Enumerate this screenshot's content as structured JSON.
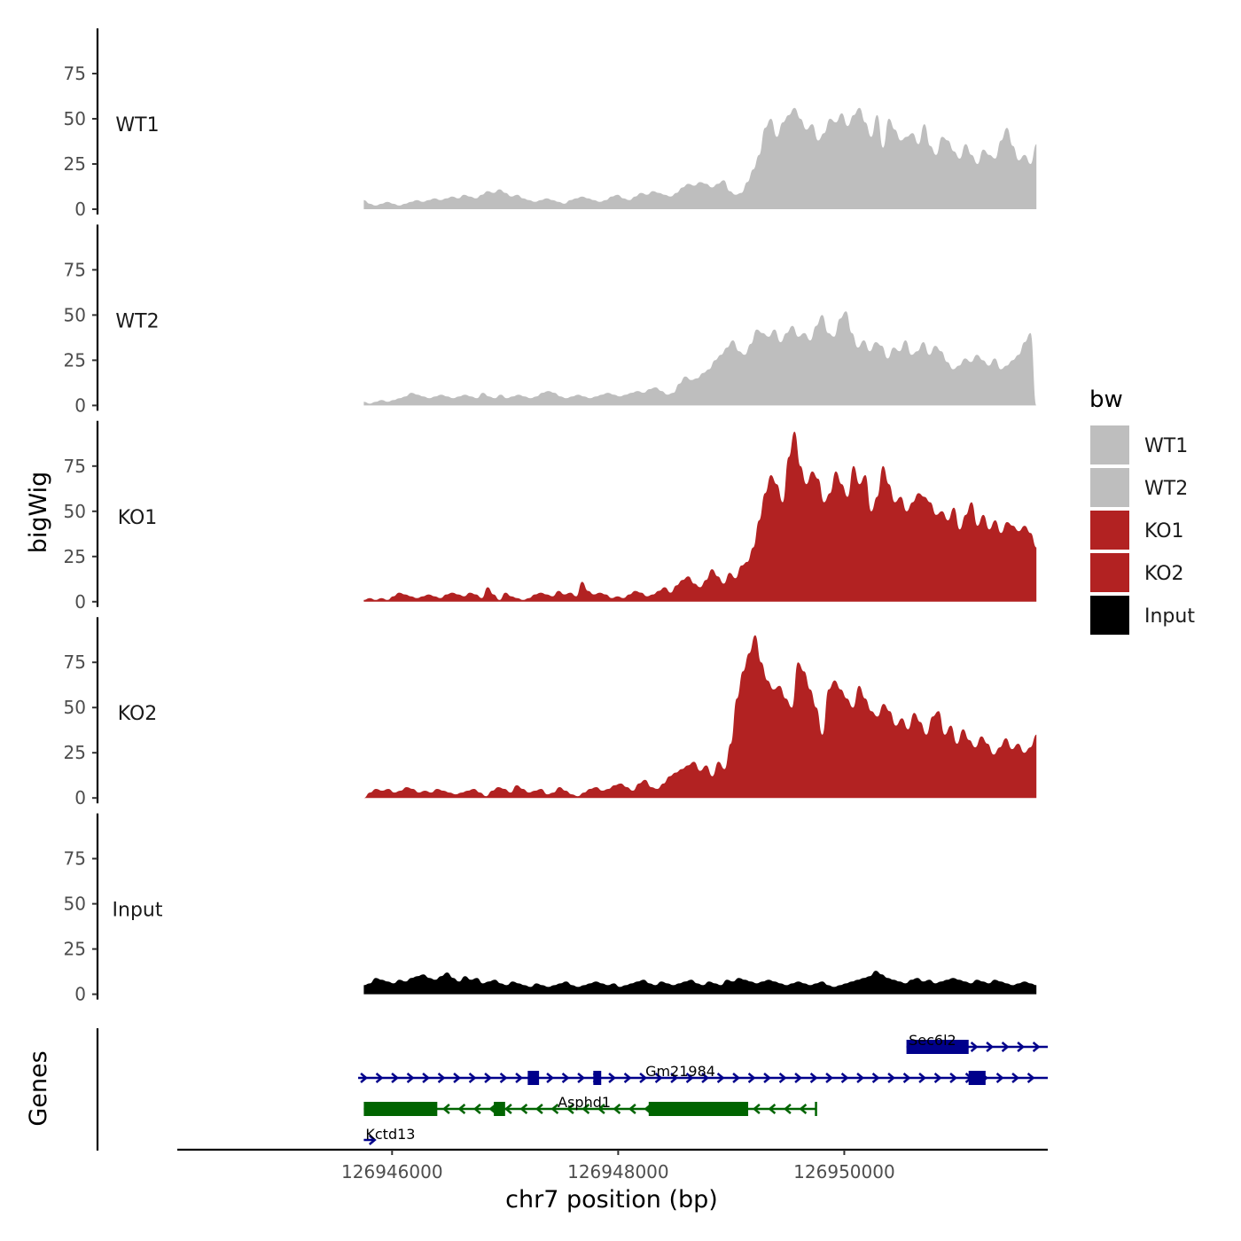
{
  "chart_data": {
    "type": "area",
    "title": "",
    "chromosome": "chr7",
    "xlabel": "chr7 position (bp)",
    "ylabel": "bigWig",
    "genes_ylabel": "Genes",
    "xlim": [
      126944100,
      126951800
    ],
    "x_ticks": [
      126946000,
      126948000,
      126950000
    ],
    "x_tick_labels": [
      "126946000",
      "126948000",
      "126950000"
    ],
    "ylim": [
      0,
      100
    ],
    "y_ticks": [
      0,
      25,
      50,
      75
    ],
    "y_tick_labels": [
      "0",
      "25",
      "50",
      "75"
    ],
    "data_range": [
      126945750,
      126951700
    ],
    "legend": {
      "title": "bw",
      "position": "right",
      "entries": [
        {
          "label": "WT1",
          "color": "#bebebe"
        },
        {
          "label": "WT2",
          "color": "#bebebe"
        },
        {
          "label": "KO1",
          "color": "#b22222"
        },
        {
          "label": "KO2",
          "color": "#b22222"
        },
        {
          "label": "Input",
          "color": "#000000"
        }
      ]
    },
    "series": [
      {
        "name": "WT1",
        "color": "#bebebe",
        "values": [
          5,
          3,
          2,
          3,
          4,
          3,
          2,
          3,
          4,
          5,
          4,
          5,
          6,
          5,
          6,
          7,
          6,
          8,
          7,
          6,
          8,
          10,
          9,
          11,
          9,
          7,
          8,
          6,
          5,
          4,
          5,
          6,
          5,
          4,
          3,
          5,
          6,
          7,
          6,
          5,
          4,
          5,
          7,
          8,
          6,
          5,
          7,
          9,
          8,
          10,
          9,
          8,
          7,
          9,
          12,
          14,
          13,
          15,
          14,
          12,
          14,
          16,
          10,
          8,
          9,
          15,
          22,
          30,
          45,
          50,
          40,
          48,
          52,
          56,
          50,
          44,
          47,
          38,
          42,
          50,
          48,
          53,
          46,
          52,
          56,
          48,
          40,
          52,
          34,
          50,
          44,
          38,
          40,
          42,
          36,
          47,
          35,
          30,
          40,
          38,
          32,
          28,
          36,
          30,
          25,
          33,
          30,
          28,
          38,
          45,
          35,
          27,
          30,
          25,
          36
        ]
      },
      {
        "name": "WT2",
        "color": "#bebebe",
        "values": [
          2,
          1,
          2,
          3,
          2,
          3,
          4,
          5,
          7,
          6,
          5,
          4,
          5,
          6,
          5,
          4,
          5,
          6,
          5,
          4,
          7,
          5,
          4,
          6,
          4,
          5,
          6,
          5,
          4,
          5,
          7,
          8,
          7,
          5,
          4,
          5,
          6,
          5,
          4,
          5,
          6,
          7,
          6,
          5,
          6,
          7,
          8,
          7,
          9,
          10,
          8,
          6,
          7,
          12,
          16,
          14,
          15,
          18,
          20,
          25,
          28,
          32,
          36,
          30,
          28,
          34,
          42,
          40,
          38,
          42,
          35,
          40,
          44,
          38,
          40,
          36,
          44,
          50,
          40,
          38,
          48,
          52,
          40,
          32,
          36,
          30,
          35,
          33,
          26,
          32,
          30,
          36,
          28,
          30,
          35,
          28,
          33,
          30,
          24,
          20,
          22,
          26,
          24,
          28,
          25,
          22,
          26,
          20,
          22,
          25,
          28,
          35,
          40,
          0
        ]
      },
      {
        "name": "KO1",
        "color": "#b22222",
        "values": [
          1,
          2,
          1,
          2,
          1,
          3,
          5,
          4,
          3,
          2,
          3,
          4,
          3,
          2,
          4,
          5,
          4,
          3,
          5,
          4,
          2,
          8,
          4,
          1,
          5,
          3,
          2,
          1,
          2,
          4,
          5,
          4,
          3,
          6,
          4,
          5,
          3,
          11,
          6,
          4,
          5,
          4,
          2,
          3,
          2,
          4,
          6,
          5,
          3,
          4,
          6,
          8,
          5,
          9,
          12,
          14,
          10,
          8,
          12,
          18,
          14,
          10,
          16,
          13,
          20,
          22,
          30,
          45,
          60,
          70,
          65,
          55,
          80,
          94,
          75,
          65,
          72,
          68,
          55,
          60,
          72,
          65,
          58,
          75,
          65,
          70,
          50,
          58,
          75,
          65,
          55,
          58,
          50,
          55,
          60,
          58,
          55,
          48,
          50,
          45,
          52,
          40,
          48,
          55,
          42,
          48,
          40,
          45,
          38,
          44,
          42,
          39,
          42,
          38,
          30
        ]
      },
      {
        "name": "KO2",
        "color": "#b22222",
        "values": [
          0,
          3,
          5,
          4,
          5,
          3,
          4,
          6,
          5,
          3,
          4,
          3,
          5,
          4,
          3,
          2,
          3,
          4,
          5,
          3,
          1,
          4,
          6,
          5,
          3,
          7,
          5,
          3,
          4,
          5,
          2,
          3,
          6,
          4,
          2,
          1,
          3,
          5,
          6,
          4,
          5,
          7,
          8,
          6,
          4,
          8,
          10,
          6,
          5,
          8,
          12,
          14,
          16,
          18,
          20,
          15,
          18,
          12,
          20,
          16,
          30,
          55,
          70,
          80,
          90,
          75,
          65,
          60,
          62,
          55,
          50,
          75,
          70,
          60,
          50,
          35,
          60,
          65,
          60,
          55,
          50,
          62,
          55,
          48,
          45,
          52,
          48,
          40,
          44,
          38,
          47,
          42,
          35,
          45,
          48,
          35,
          40,
          30,
          38,
          32,
          28,
          34,
          30,
          24,
          28,
          33,
          27,
          30,
          25,
          28,
          35
        ]
      },
      {
        "name": "Input",
        "color": "#000000",
        "values": [
          5,
          6,
          9,
          8,
          7,
          6,
          8,
          7,
          9,
          10,
          11,
          9,
          8,
          10,
          12,
          9,
          7,
          10,
          8,
          9,
          6,
          7,
          8,
          6,
          5,
          7,
          6,
          5,
          4,
          6,
          5,
          4,
          5,
          6,
          7,
          5,
          4,
          5,
          6,
          7,
          6,
          5,
          6,
          4,
          5,
          6,
          7,
          8,
          6,
          5,
          7,
          6,
          5,
          6,
          7,
          8,
          6,
          5,
          7,
          6,
          5,
          8,
          7,
          9,
          8,
          7,
          6,
          7,
          8,
          7,
          6,
          5,
          6,
          7,
          6,
          5,
          6,
          7,
          5,
          4,
          5,
          6,
          7,
          8,
          9,
          10,
          13,
          11,
          9,
          8,
          7,
          6,
          8,
          9,
          7,
          8,
          6,
          7,
          8,
          9,
          8,
          7,
          6,
          8,
          7,
          6,
          8,
          7,
          6,
          5,
          6,
          7,
          6,
          5
        ]
      }
    ],
    "genes": [
      {
        "name": "Sec6l2",
        "row": 1,
        "strand": "+",
        "start": 126950550,
        "end": 126951800,
        "exons": [
          [
            126950550,
            126951100
          ]
        ],
        "color": "#00008b"
      },
      {
        "name": "Gm21984",
        "row": 2,
        "strand": "+",
        "start": 126945700,
        "end": 126951800,
        "exons": [
          [
            126947200,
            126947300
          ],
          [
            126947780,
            126947850
          ],
          [
            126951100,
            126951250
          ]
        ],
        "color": "#00008b"
      },
      {
        "name": "Asphd1",
        "row": 3,
        "strand": "-",
        "start": 126945750,
        "end": 126949750,
        "exons": [
          [
            126945750,
            126946400
          ],
          [
            126946900,
            126947000
          ],
          [
            126948270,
            126949150
          ]
        ],
        "color": "#006400"
      },
      {
        "name": "Kctd13",
        "row": 4,
        "strand": "+",
        "start": 126945750,
        "end": 126945800,
        "exons": [],
        "color": "#00008b"
      }
    ]
  }
}
